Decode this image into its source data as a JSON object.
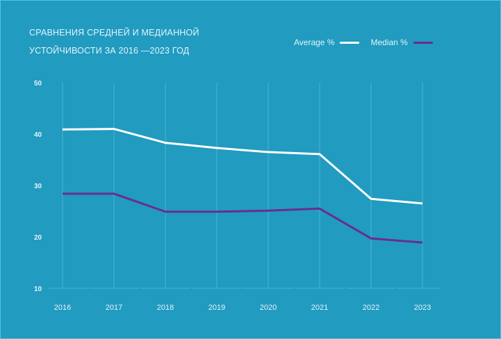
{
  "chart_data": {
    "type": "line",
    "title_lines": [
      "СРАВНЕНИЯ СРЕДНЕЙ И МЕДИАННОЙ",
      "УСТОЙЧИВОСТИ ЗА 2016 —2023 ГОД"
    ],
    "xlabel": "",
    "ylabel": "",
    "categories": [
      "2016",
      "2017",
      "2018",
      "2019",
      "2020",
      "2021",
      "2022",
      "2023"
    ],
    "yticks": [
      10,
      20,
      30,
      40,
      50
    ],
    "ylim": [
      10,
      50
    ],
    "grid": "vertical",
    "legend_position": "top-right",
    "series": [
      {
        "name": "Average %",
        "color": "#ffffff",
        "values": [
          40.9,
          41.0,
          38.3,
          37.3,
          36.5,
          36.1,
          27.4,
          26.5
        ]
      },
      {
        "name": "Median %",
        "color": "#6b2d8a",
        "values": [
          28.4,
          28.4,
          24.9,
          24.9,
          25.1,
          25.5,
          19.7,
          18.9
        ]
      }
    ]
  },
  "colors": {
    "background": "#219bc0",
    "text": "#e4f4fa",
    "grid": "#4db3d2"
  }
}
